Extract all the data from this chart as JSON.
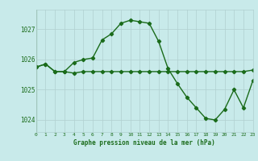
{
  "line1_x": [
    0,
    1,
    2,
    3,
    4,
    5,
    6,
    7,
    8,
    9,
    10,
    11,
    12,
    13,
    14,
    15,
    16,
    17,
    18,
    19,
    20,
    21,
    22,
    23
  ],
  "line1_y": [
    1025.75,
    1025.85,
    1025.6,
    1025.6,
    1025.55,
    1025.6,
    1025.6,
    1025.6,
    1025.6,
    1025.6,
    1025.6,
    1025.6,
    1025.6,
    1025.6,
    1025.6,
    1025.6,
    1025.6,
    1025.6,
    1025.6,
    1025.6,
    1025.6,
    1025.6,
    1025.6,
    1025.65
  ],
  "line2_x": [
    0,
    1,
    2,
    3,
    4,
    5,
    6,
    7,
    8,
    9,
    10,
    11,
    12,
    13,
    14,
    15,
    16,
    17,
    18,
    19,
    20,
    21,
    22,
    23
  ],
  "line2_y": [
    1025.75,
    1025.85,
    1025.6,
    1025.6,
    1025.9,
    1026.0,
    1026.05,
    1026.65,
    1026.85,
    1027.2,
    1027.3,
    1027.25,
    1027.2,
    1026.6,
    1025.7,
    1025.2,
    1024.75,
    1024.4,
    1024.05,
    1024.0,
    1024.35,
    1025.0,
    1024.4,
    1025.3
  ],
  "line_color": "#1a6b1a",
  "bg_color": "#c8eaea",
  "grid_color": "#b0d0d0",
  "text_color": "#1a6b1a",
  "yticks": [
    1024,
    1025,
    1026,
    1027
  ],
  "xticks": [
    0,
    1,
    2,
    3,
    4,
    5,
    6,
    7,
    8,
    9,
    10,
    11,
    12,
    13,
    14,
    15,
    16,
    17,
    18,
    19,
    20,
    21,
    22,
    23
  ],
  "ylim": [
    1023.6,
    1027.65
  ],
  "xlim": [
    0,
    23
  ],
  "xlabel": "Graphe pression niveau de la mer (hPa)",
  "marker": "D",
  "markersize": 2.2,
  "linewidth": 1.0
}
